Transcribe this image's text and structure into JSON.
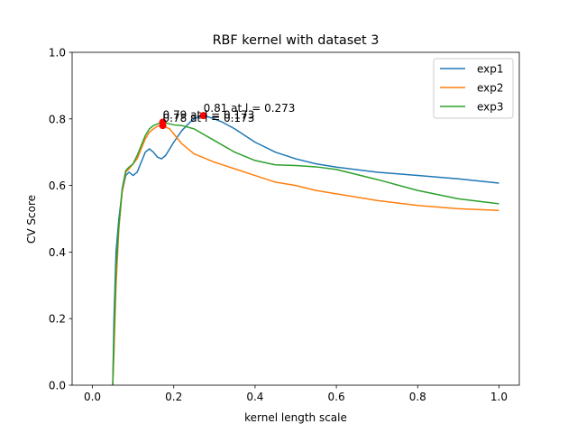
{
  "chart_data": {
    "type": "line",
    "title": "RBF kernel with dataset 3",
    "xlabel": "kernel length scale",
    "ylabel": "CV Score",
    "xlim": [
      -0.05,
      1.05
    ],
    "ylim": [
      0.0,
      1.0
    ],
    "xticks": [
      0.0,
      0.2,
      0.4,
      0.6,
      0.8,
      1.0
    ],
    "xtick_labels": [
      "0.0",
      "0.2",
      "0.4",
      "0.6",
      "0.8",
      "1.0"
    ],
    "yticks": [
      0.0,
      0.2,
      0.4,
      0.6,
      0.8,
      1.0
    ],
    "ytick_labels": [
      "0.0",
      "0.2",
      "0.4",
      "0.6",
      "0.8",
      "1.0"
    ],
    "grid": false,
    "legend_position": "top-right",
    "series": [
      {
        "name": "exp1",
        "color": "#1f77b4",
        "x": [
          0.05,
          0.053,
          0.058,
          0.065,
          0.073,
          0.082,
          0.09,
          0.1,
          0.11,
          0.12,
          0.13,
          0.14,
          0.15,
          0.16,
          0.17,
          0.18,
          0.19,
          0.2,
          0.22,
          0.24,
          0.25,
          0.26,
          0.27,
          0.28,
          0.3,
          0.32,
          0.35,
          0.4,
          0.45,
          0.5,
          0.55,
          0.6,
          0.7,
          0.8,
          0.9,
          1.0
        ],
        "y": [
          0.0,
          0.2,
          0.4,
          0.5,
          0.58,
          0.63,
          0.64,
          0.63,
          0.64,
          0.67,
          0.7,
          0.71,
          0.7,
          0.685,
          0.68,
          0.69,
          0.71,
          0.73,
          0.765,
          0.79,
          0.8,
          0.805,
          0.81,
          0.808,
          0.8,
          0.79,
          0.77,
          0.73,
          0.7,
          0.68,
          0.665,
          0.655,
          0.64,
          0.63,
          0.62,
          0.607
        ]
      },
      {
        "name": "exp2",
        "color": "#ff7f0e",
        "x": [
          0.05,
          0.053,
          0.058,
          0.065,
          0.073,
          0.082,
          0.09,
          0.1,
          0.11,
          0.12,
          0.13,
          0.14,
          0.15,
          0.16,
          0.173,
          0.19,
          0.2,
          0.22,
          0.25,
          0.3,
          0.35,
          0.4,
          0.45,
          0.5,
          0.55,
          0.6,
          0.7,
          0.8,
          0.9,
          1.0
        ],
        "y": [
          0.0,
          0.1,
          0.3,
          0.47,
          0.58,
          0.64,
          0.65,
          0.665,
          0.68,
          0.71,
          0.74,
          0.76,
          0.77,
          0.778,
          0.78,
          0.77,
          0.755,
          0.725,
          0.695,
          0.67,
          0.65,
          0.63,
          0.61,
          0.6,
          0.585,
          0.575,
          0.555,
          0.54,
          0.53,
          0.525
        ]
      },
      {
        "name": "exp3",
        "color": "#2ca02c",
        "x": [
          0.05,
          0.053,
          0.058,
          0.065,
          0.073,
          0.082,
          0.09,
          0.1,
          0.11,
          0.12,
          0.13,
          0.14,
          0.15,
          0.16,
          0.173,
          0.19,
          0.2,
          0.22,
          0.25,
          0.3,
          0.35,
          0.4,
          0.45,
          0.5,
          0.55,
          0.6,
          0.7,
          0.8,
          0.9,
          1.0
        ],
        "y": [
          0.0,
          0.15,
          0.35,
          0.48,
          0.59,
          0.645,
          0.655,
          0.665,
          0.69,
          0.72,
          0.75,
          0.77,
          0.78,
          0.785,
          0.79,
          0.785,
          0.782,
          0.78,
          0.77,
          0.735,
          0.7,
          0.675,
          0.662,
          0.66,
          0.656,
          0.648,
          0.618,
          0.585,
          0.56,
          0.545
        ]
      }
    ],
    "annotations": [
      {
        "x": 0.273,
        "y": 0.81,
        "text": "0.81 at l = 0.273",
        "color": "#ff0000"
      },
      {
        "x": 0.173,
        "y": 0.79,
        "text": "0.79 at l = 0.173",
        "color": "#ff0000"
      },
      {
        "x": 0.173,
        "y": 0.78,
        "text": "0.78 at l = 0.173",
        "color": "#ff0000"
      }
    ]
  }
}
